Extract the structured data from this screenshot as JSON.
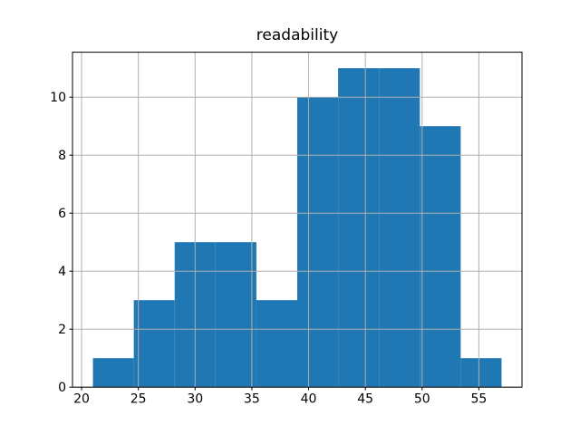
{
  "title": "readability",
  "chart_data": {
    "type": "bar",
    "subtype": "histogram",
    "title": "readability",
    "xlabel": "",
    "ylabel": "",
    "bin_edges": [
      21.0,
      24.6,
      28.2,
      31.8,
      35.4,
      39.0,
      42.6,
      46.2,
      49.8,
      53.4,
      57.0
    ],
    "counts": [
      1,
      3,
      5,
      5,
      3,
      10,
      11,
      11,
      9,
      1
    ],
    "xlim": [
      19.2,
      58.8
    ],
    "ylim": [
      0,
      11.55
    ],
    "xticks": [
      20,
      25,
      30,
      35,
      40,
      45,
      50,
      55
    ],
    "yticks": [
      0,
      2,
      4,
      6,
      8,
      10
    ],
    "grid": true,
    "grid_over_bars": true,
    "legend": null,
    "colors": {
      "bar": "#1f77b4",
      "grid": "#b0b0b0",
      "spine": "#000000",
      "tick": "#000000",
      "background": "#ffffff"
    }
  }
}
